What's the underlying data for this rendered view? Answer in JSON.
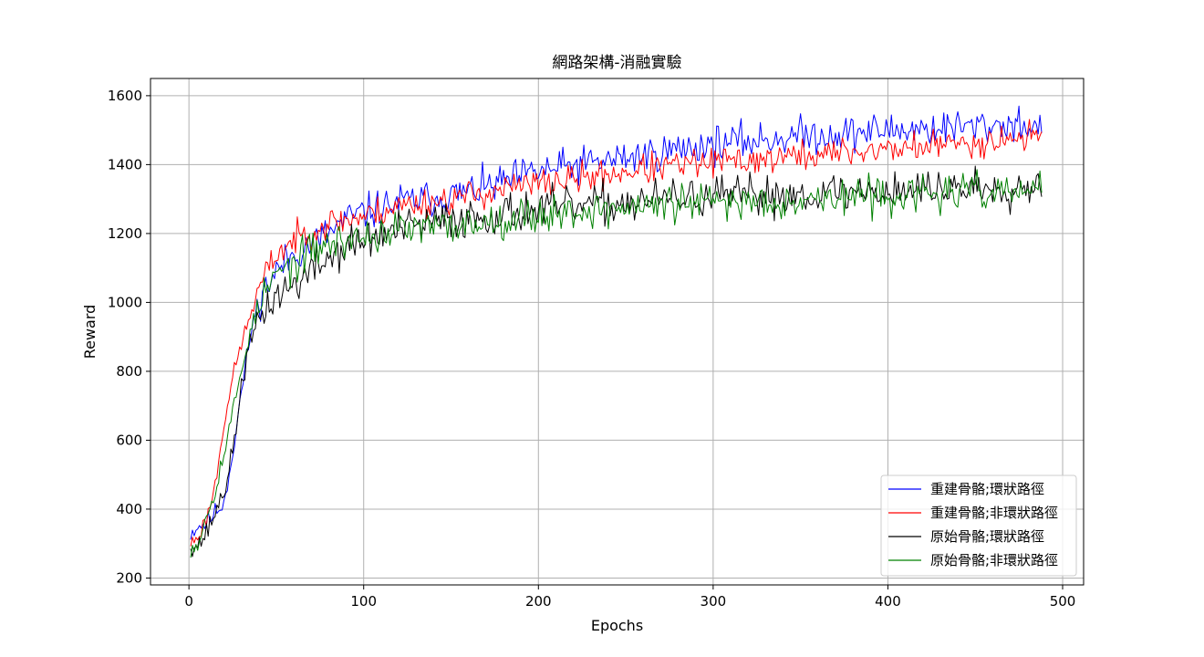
{
  "chart_data": {
    "type": "line",
    "title": "網路架構-消融實驗",
    "xlabel": "Epochs",
    "ylabel": "Reward",
    "xlim": [
      -22,
      512
    ],
    "ylim": [
      180,
      1650
    ],
    "xticks": [
      0,
      100,
      200,
      300,
      400,
      500
    ],
    "yticks": [
      200,
      400,
      600,
      800,
      1000,
      1200,
      1400,
      1600
    ],
    "grid": true,
    "legend_position": "lower-right",
    "x_start": 1,
    "x_end": 488,
    "series": [
      {
        "name": "重建骨骼;環狀路徑",
        "color": "#0000ff",
        "anchors": [
          [
            1,
            330
          ],
          [
            5,
            350
          ],
          [
            10,
            360
          ],
          [
            15,
            390
          ],
          [
            20,
            420
          ],
          [
            25,
            560
          ],
          [
            30,
            740
          ],
          [
            35,
            900
          ],
          [
            40,
            1010
          ],
          [
            45,
            1050
          ],
          [
            50,
            1090
          ],
          [
            60,
            1140
          ],
          [
            70,
            1170
          ],
          [
            80,
            1200
          ],
          [
            90,
            1240
          ],
          [
            100,
            1260
          ],
          [
            120,
            1290
          ],
          [
            150,
            1310
          ],
          [
            175,
            1340
          ],
          [
            200,
            1380
          ],
          [
            225,
            1400
          ],
          [
            250,
            1420
          ],
          [
            275,
            1440
          ],
          [
            300,
            1460
          ],
          [
            325,
            1470
          ],
          [
            350,
            1485
          ],
          [
            375,
            1490
          ],
          [
            400,
            1500
          ],
          [
            425,
            1505
          ],
          [
            450,
            1510
          ],
          [
            475,
            1520
          ],
          [
            488,
            1500
          ]
        ],
        "noise": 50,
        "seed": 11
      },
      {
        "name": "重建骨骼;非環狀路徑",
        "color": "#ff0000",
        "anchors": [
          [
            1,
            300
          ],
          [
            5,
            320
          ],
          [
            10,
            370
          ],
          [
            15,
            470
          ],
          [
            20,
            650
          ],
          [
            25,
            780
          ],
          [
            30,
            880
          ],
          [
            35,
            960
          ],
          [
            40,
            1040
          ],
          [
            45,
            1090
          ],
          [
            50,
            1140
          ],
          [
            60,
            1180
          ],
          [
            70,
            1210
          ],
          [
            80,
            1230
          ],
          [
            90,
            1240
          ],
          [
            100,
            1250
          ],
          [
            120,
            1280
          ],
          [
            150,
            1300
          ],
          [
            175,
            1325
          ],
          [
            200,
            1345
          ],
          [
            225,
            1360
          ],
          [
            250,
            1380
          ],
          [
            275,
            1395
          ],
          [
            300,
            1405
          ],
          [
            325,
            1415
          ],
          [
            350,
            1425
          ],
          [
            375,
            1435
          ],
          [
            400,
            1445
          ],
          [
            425,
            1455
          ],
          [
            450,
            1465
          ],
          [
            475,
            1480
          ],
          [
            488,
            1480
          ]
        ],
        "noise": 42,
        "seed": 23
      },
      {
        "name": "原始骨骼;環狀路徑",
        "color": "#000000",
        "anchors": [
          [
            1,
            300
          ],
          [
            5,
            295
          ],
          [
            10,
            330
          ],
          [
            15,
            390
          ],
          [
            20,
            450
          ],
          [
            25,
            560
          ],
          [
            30,
            760
          ],
          [
            35,
            880
          ],
          [
            40,
            950
          ],
          [
            45,
            990
          ],
          [
            50,
            1020
          ],
          [
            60,
            1050
          ],
          [
            70,
            1090
          ],
          [
            80,
            1130
          ],
          [
            90,
            1160
          ],
          [
            100,
            1180
          ],
          [
            120,
            1210
          ],
          [
            150,
            1240
          ],
          [
            175,
            1255
          ],
          [
            200,
            1270
          ],
          [
            225,
            1280
          ],
          [
            250,
            1290
          ],
          [
            275,
            1300
          ],
          [
            300,
            1305
          ],
          [
            325,
            1310
          ],
          [
            350,
            1315
          ],
          [
            375,
            1320
          ],
          [
            400,
            1325
          ],
          [
            425,
            1330
          ],
          [
            450,
            1335
          ],
          [
            475,
            1335
          ],
          [
            488,
            1350
          ]
        ],
        "noise": 55,
        "seed": 37
      },
      {
        "name": "原始骨骼;非環狀路徑",
        "color": "#008000",
        "anchors": [
          [
            1,
            290
          ],
          [
            5,
            300
          ],
          [
            10,
            380
          ],
          [
            15,
            460
          ],
          [
            20,
            560
          ],
          [
            25,
            680
          ],
          [
            30,
            800
          ],
          [
            35,
            920
          ],
          [
            40,
            990
          ],
          [
            45,
            1040
          ],
          [
            50,
            1080
          ],
          [
            60,
            1110
          ],
          [
            70,
            1150
          ],
          [
            80,
            1170
          ],
          [
            90,
            1180
          ],
          [
            100,
            1190
          ],
          [
            120,
            1210
          ],
          [
            150,
            1220
          ],
          [
            175,
            1240
          ],
          [
            200,
            1255
          ],
          [
            225,
            1265
          ],
          [
            250,
            1275
          ],
          [
            275,
            1285
          ],
          [
            300,
            1290
          ],
          [
            325,
            1295
          ],
          [
            350,
            1300
          ],
          [
            375,
            1305
          ],
          [
            400,
            1310
          ],
          [
            425,
            1315
          ],
          [
            450,
            1320
          ],
          [
            475,
            1320
          ],
          [
            488,
            1340
          ]
        ],
        "noise": 50,
        "seed": 53
      }
    ]
  }
}
